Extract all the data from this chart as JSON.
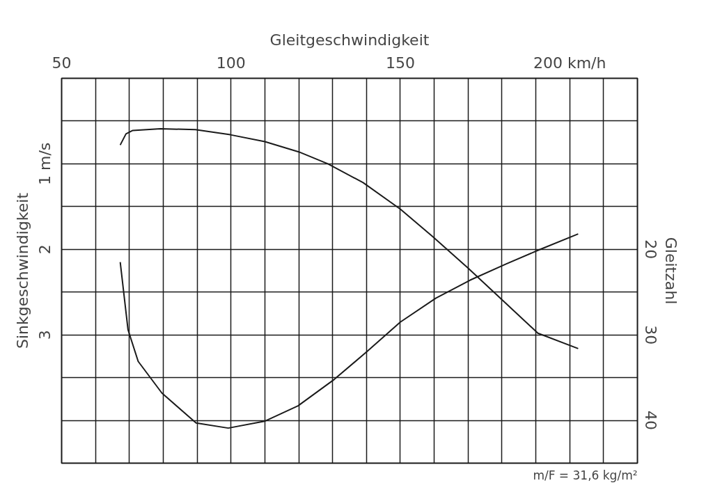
{
  "chart_data": {
    "type": "line",
    "xlabel": "Gleitgeschwindigkeit",
    "ylabel": "Sinkgeschwindigkeit",
    "y2label": "Gleitzahl",
    "annotations": [
      "m/F = 31,6 kg/m²"
    ],
    "xlim": [
      50,
      220
    ],
    "xticks": [
      50,
      {
        "value": 60,
        "label": null
      },
      {
        "value": 70,
        "label": null
      },
      {
        "value": 80,
        "label": null
      },
      {
        "value": 90,
        "label": null
      },
      100,
      {
        "value": 110,
        "label": null
      },
      {
        "value": 120,
        "label": null
      },
      {
        "value": 130,
        "label": null
      },
      {
        "value": 140,
        "label": null
      },
      150,
      {
        "value": 160,
        "label": null
      },
      {
        "value": 170,
        "label": null
      },
      {
        "value": 180,
        "label": null
      },
      {
        "value": 190,
        "label": null
      },
      {
        "value": 200,
        "label": "200 km/h"
      },
      {
        "value": 210,
        "label": null
      },
      {
        "value": 220,
        "label": null
      }
    ],
    "ylim": [
      4.5,
      0
    ],
    "yticks": [
      {
        "value": 0,
        "label": null
      },
      {
        "value": 0.5,
        "label": null
      },
      {
        "value": 1,
        "label": "1 m/s"
      },
      {
        "value": 1.5,
        "label": null
      },
      2,
      {
        "value": 2.5,
        "label": null
      },
      3,
      {
        "value": 3.5,
        "label": null
      },
      {
        "value": 4,
        "label": null
      },
      {
        "value": 4.5,
        "label": null
      }
    ],
    "y2lim": [
      45,
      0
    ],
    "y2ticks": [
      20,
      30,
      40
    ],
    "grid": true,
    "marker": "none",
    "line_style": "solid",
    "series": [
      {
        "color": "#1a1a1a",
        "x": [
          67.3,
          69,
          71,
          79.2,
          89.5,
          99.8,
          110,
          120,
          128.6,
          139,
          150,
          159.5,
          170,
          180.3,
          190.6,
          202.5
        ],
        "values": [
          0.78,
          0.65,
          0.61,
          0.59,
          0.6,
          0.66,
          0.74,
          0.86,
          1.0,
          1.22,
          1.53,
          1.85,
          2.22,
          2.6,
          2.98,
          3.16
        ]
      },
      {
        "color": "#1a1a1a",
        "axis": "y2",
        "x": [
          67.3,
          69.6,
          72.6,
          79.6,
          89.7,
          99.2,
          109.9,
          119.8,
          130.5,
          140,
          150,
          160.5,
          170.6,
          181.3,
          190.7,
          202.5
        ],
        "values": [
          21.5,
          29.4,
          33.1,
          36.8,
          40.3,
          40.9,
          40.1,
          38.3,
          35.2,
          32.0,
          28.5,
          25.7,
          23.6,
          21.7,
          20.1,
          18.2
        ]
      }
    ]
  }
}
